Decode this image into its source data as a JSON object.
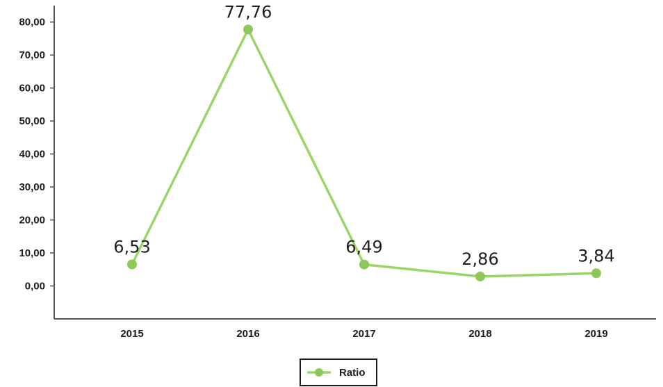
{
  "chart_data": {
    "type": "line",
    "categories": [
      "2015",
      "2016",
      "2017",
      "2018",
      "2019"
    ],
    "series": [
      {
        "name": "Ratio",
        "values": [
          6.53,
          77.76,
          6.49,
          2.86,
          3.84
        ],
        "labels": [
          "6,53",
          "77,76",
          "6,49",
          "2,86",
          "3,84"
        ],
        "color": "#9bd468"
      }
    ],
    "y_ticks": [
      "0,00",
      "10,00",
      "20,00",
      "30,00",
      "40,00",
      "50,00",
      "60,00",
      "70,00",
      "80,00"
    ],
    "ylim": [
      -10,
      85
    ],
    "grid": false,
    "legend_position": "bottom-center",
    "axis_color": "#555555",
    "marker_color": "#8cc85a"
  }
}
